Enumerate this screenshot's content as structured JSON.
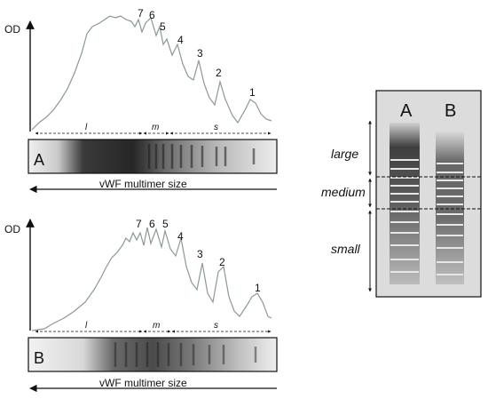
{
  "panels": [
    {
      "od_label": "OD",
      "peak_labels": [
        "7",
        "6",
        "5",
        "4",
        "3",
        "2",
        "1"
      ],
      "region_labels": [
        "l",
        "m",
        "s"
      ],
      "gel_label": "A",
      "axis_label": "vWF multimer size"
    },
    {
      "od_label": "OD",
      "peak_labels": [
        "7",
        "6",
        "5",
        "4",
        "3",
        "2",
        "1"
      ],
      "region_labels": [
        "l",
        "m",
        "s"
      ],
      "gel_label": "B",
      "axis_label": "vWF multimer size"
    }
  ],
  "gel": {
    "lane_labels": [
      "A",
      "B"
    ],
    "zones": [
      "large",
      "medium",
      "small"
    ]
  }
}
